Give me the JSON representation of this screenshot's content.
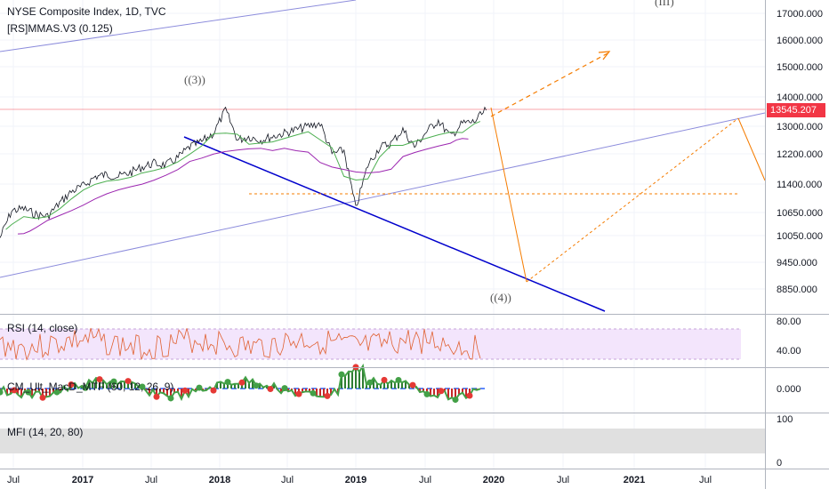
{
  "header": {
    "title": "NYSE Composite Index, 1D, TVC",
    "indicator": "[RS]MMAS.V3 (0.125)"
  },
  "chart_data": {
    "type": "line",
    "series_name": "NYSE Composite Index",
    "last_price": "13545.207",
    "price_axis_ticks": [
      "17000.000",
      "16000.000",
      "15000.000",
      "14000.000",
      "13000.000",
      "12200.000",
      "11400.000",
      "10650.000",
      "10050.000",
      "9450.000",
      "8850.000"
    ],
    "time_axis_ticks": [
      "Jul",
      "2017",
      "Jul",
      "2018",
      "Jul",
      "2019",
      "Jul",
      "2020",
      "Jul",
      "2021",
      "Jul"
    ],
    "price_path": [
      [
        "2016-06",
        10000
      ],
      [
        "2016-07",
        10700
      ],
      [
        "2016-08",
        10750
      ],
      [
        "2016-09",
        10600
      ],
      [
        "2016-10",
        10550
      ],
      [
        "2016-11",
        10900
      ],
      [
        "2016-12",
        11200
      ],
      [
        "2017-01",
        11350
      ],
      [
        "2017-02",
        11600
      ],
      [
        "2017-03",
        11650
      ],
      [
        "2017-04",
        11600
      ],
      [
        "2017-05",
        11700
      ],
      [
        "2017-06",
        11850
      ],
      [
        "2017-07",
        11950
      ],
      [
        "2017-08",
        11900
      ],
      [
        "2017-09",
        12100
      ],
      [
        "2017-10",
        12400
      ],
      [
        "2017-11",
        12550
      ],
      [
        "2017-12",
        12800
      ],
      [
        "2018-01",
        13550
      ],
      [
        "2018-02",
        12600
      ],
      [
        "2018-03",
        12700
      ],
      [
        "2018-04",
        12600
      ],
      [
        "2018-05",
        12700
      ],
      [
        "2018-06",
        12800
      ],
      [
        "2018-07",
        12900
      ],
      [
        "2018-08",
        13000
      ],
      [
        "2018-09",
        13100
      ],
      [
        "2018-10",
        12200
      ],
      [
        "2018-11",
        12300
      ],
      [
        "2018-12",
        10750
      ],
      [
        "2019-01",
        11900
      ],
      [
        "2019-02",
        12400
      ],
      [
        "2019-03",
        12500
      ],
      [
        "2019-04",
        12900
      ],
      [
        "2019-05",
        12400
      ],
      [
        "2019-06",
        12850
      ],
      [
        "2019-07",
        13200
      ],
      [
        "2019-08",
        12700
      ],
      [
        "2019-09",
        13100
      ],
      [
        "2019-10",
        13150
      ],
      [
        "2019-11",
        13545
      ]
    ],
    "wave_labels": [
      "((3))",
      "((4))",
      "(III)"
    ],
    "panels": [
      {
        "name": "RSI (14, close)",
        "ticks": [
          "80.00",
          "40.00"
        ]
      },
      {
        "name": "CM_Ult_MacD_MTF (60, 12, 26, 9)",
        "ticks": [
          "0.000"
        ]
      },
      {
        "name": "MFI (14, 20, 80)",
        "ticks": [
          "100",
          "0"
        ]
      }
    ],
    "grid": true
  },
  "colors": {
    "price": "#131722",
    "ma_green": "#4caf50",
    "ma_purple": "#9c27b0",
    "trendline": "#0000cc",
    "channel": "#8c8cdc",
    "projection": "#f57c00",
    "last_price_line": "#f23645",
    "rsi_band": "#f3e5fc",
    "rsi_line": "#e06030",
    "mfi_band": "#e0e0e0"
  }
}
